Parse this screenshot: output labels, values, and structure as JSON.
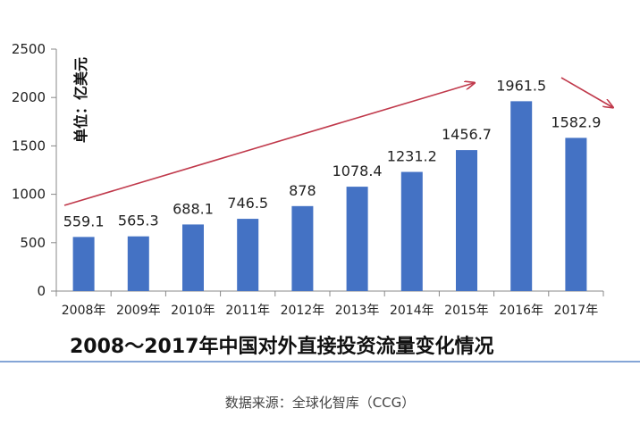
{
  "chart_data": {
    "type": "bar",
    "title": "2008～2017年中国对外直接投资流量变化情况",
    "unit_label": "单位：亿美元",
    "categories": [
      "2008年",
      "2009年",
      "2010年",
      "2011年",
      "2012年",
      "2013年",
      "2014年",
      "2015年",
      "2016年",
      "2017年"
    ],
    "values": [
      559.1,
      565.3,
      688.1,
      746.5,
      878,
      1078.4,
      1231.2,
      1456.7,
      1961.5,
      1582.9
    ],
    "data_labels": [
      "559.1",
      "565.3",
      "688.1",
      "746.5",
      "878",
      "1078.4",
      "1231.2",
      "1456.7",
      "1961.5",
      "1582.9"
    ],
    "ylim": [
      0,
      2500
    ],
    "yticks": [
      0,
      500,
      1000,
      1500,
      2000,
      2500
    ],
    "bar_color": "#4472C4",
    "arrow_color": "#C0394B",
    "grid": false
  },
  "source": "数据来源：全球化智库（CCG）"
}
